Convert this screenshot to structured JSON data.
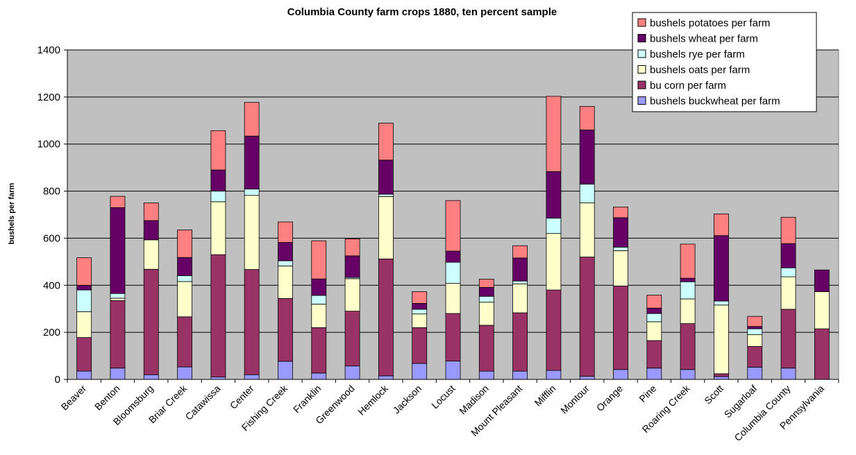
{
  "chart_data": {
    "type": "bar",
    "stacked": true,
    "title": "Columbia County farm crops 1880, ten percent sample",
    "xlabel": "",
    "ylabel": "bushels per farm",
    "ylim": [
      0,
      1400
    ],
    "yticks": [
      0,
      200,
      400,
      600,
      800,
      1000,
      1200,
      1400
    ],
    "grid": true,
    "legend_position": "top-right",
    "plot_background": "#c0c0c0",
    "categories": [
      "Beaver",
      "Benton",
      "Bloomsburg",
      "Briar Creek",
      "Catawissa",
      "Center",
      "Fishing Creek",
      "Franklin",
      "Greenwood",
      "Hemlock",
      "Jackson",
      "Locust",
      "Madison",
      "Mount Pleasant",
      "Mifflin",
      "Montour",
      "Orange",
      "Pine",
      "Roaring Creek",
      "Scott",
      "Sugarloaf",
      "Columbia County",
      "Pennsylvania"
    ],
    "series": [
      {
        "name": "bushels buckwheat per farm",
        "color": "#9999ff",
        "values": [
          35,
          48,
          20,
          53,
          10,
          20,
          77,
          27,
          57,
          15,
          68,
          78,
          35,
          35,
          38,
          13,
          42,
          48,
          42,
          12,
          52,
          48,
          0
        ]
      },
      {
        "name": "bu corn per farm",
        "color": "#993366",
        "values": [
          143,
          287,
          448,
          213,
          520,
          447,
          267,
          193,
          233,
          497,
          152,
          202,
          195,
          248,
          342,
          507,
          355,
          117,
          195,
          12,
          88,
          250,
          215
        ]
      },
      {
        "name": "bushels oats per farm",
        "color": "#ffffcc",
        "values": [
          110,
          10,
          125,
          150,
          225,
          315,
          138,
          100,
          138,
          265,
          58,
          128,
          98,
          123,
          240,
          230,
          150,
          80,
          105,
          292,
          50,
          138,
          158
        ]
      },
      {
        "name": "bushels rye per farm",
        "color": "#ccffff",
        "values": [
          92,
          20,
          0,
          25,
          45,
          27,
          22,
          37,
          5,
          10,
          20,
          90,
          25,
          12,
          65,
          80,
          15,
          35,
          73,
          17,
          25,
          38,
          0
        ]
      },
      {
        "name": "bushels wheat per farm",
        "color": "#660066",
        "values": [
          20,
          365,
          82,
          77,
          90,
          225,
          78,
          70,
          92,
          145,
          25,
          47,
          38,
          98,
          198,
          230,
          125,
          23,
          15,
          278,
          10,
          103,
          92
        ]
      },
      {
        "name": "bushels potatoes per farm",
        "color": "#ff8080",
        "values": [
          117,
          48,
          75,
          117,
          167,
          143,
          87,
          162,
          72,
          157,
          50,
          215,
          35,
          52,
          320,
          100,
          45,
          55,
          145,
          92,
          43,
          112,
          0
        ]
      }
    ]
  }
}
